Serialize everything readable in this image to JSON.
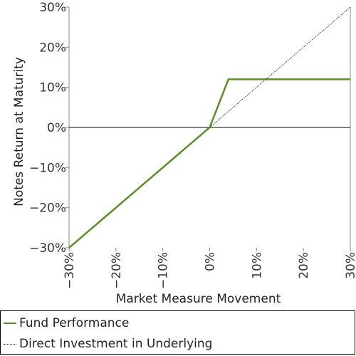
{
  "colors": {
    "fund": "#5a8f29",
    "direct": "#333333",
    "zero_line": "#000000",
    "axis": "#888888"
  },
  "chart_data": {
    "type": "line",
    "xlabel": "Market Measure Movement",
    "ylabel": "Notes Return at Maturity",
    "xlim": [
      -30,
      30
    ],
    "ylim": [
      -30,
      30
    ],
    "x_ticks": [
      -30,
      -20,
      -10,
      0,
      10,
      20,
      30
    ],
    "x_tick_labels": [
      "−30%",
      "−20%",
      "−10%",
      "0%",
      "10%",
      "20%",
      "30%"
    ],
    "y_ticks": [
      30,
      20,
      10,
      0,
      -10,
      -20,
      -30
    ],
    "y_tick_labels": [
      "30%",
      "20%",
      "10%",
      "0%",
      "−10%",
      "−20%",
      "−30%"
    ],
    "grid": false,
    "legend_position": "bottom",
    "series": [
      {
        "name": "Fund Performance",
        "style": "solid",
        "x": [
          -30,
          0,
          4,
          30
        ],
        "y": [
          -30,
          0,
          12,
          12
        ]
      },
      {
        "name": "Direct Investment in Underlying",
        "style": "dotted",
        "x": [
          0,
          30
        ],
        "y": [
          0,
          30
        ]
      }
    ]
  }
}
